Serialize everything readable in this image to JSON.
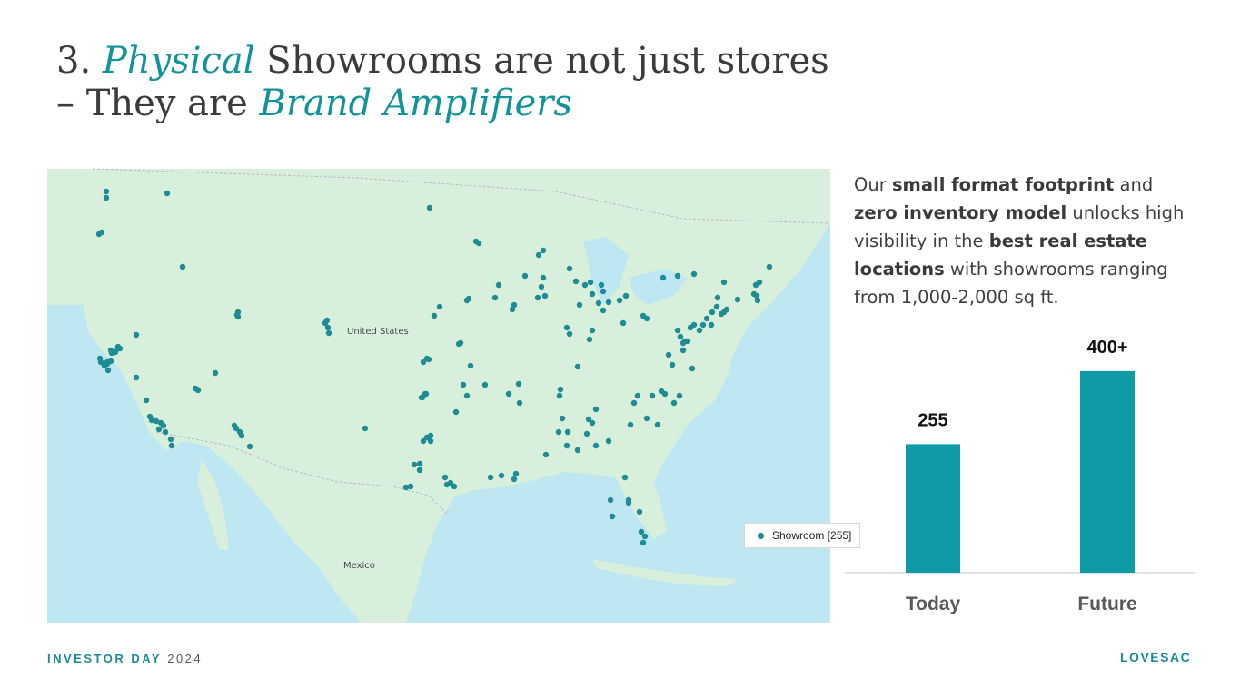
{
  "title": {
    "number": "3.",
    "word1": "Physical",
    "mid": " Showrooms are not just stores",
    "line2_pre": "– They are ",
    "word2": "Brand Amplifiers"
  },
  "map": {
    "country_label": "United States",
    "mexico_label": "Mexico",
    "legend_label": "Showroom [255]",
    "marker_color": "#1e8c95"
  },
  "description": {
    "p1": "Our ",
    "b1": "small format footprint",
    "p2": " and ",
    "b2": "zero inventory model",
    "p3": " unlocks high visibility in the  ",
    "b3": "best real estate locations",
    "p4": " with showrooms ranging from 1,000-2,000 sq ft."
  },
  "chart_data": {
    "type": "bar",
    "categories": [
      "Today",
      "Future"
    ],
    "values": [
      255,
      400
    ],
    "data_labels": [
      "255",
      "400+"
    ],
    "ylim": [
      0,
      470
    ],
    "color": "#0f9aa5",
    "grid": false,
    "legend": "none"
  },
  "footer": {
    "brand_event": "INVESTOR DAY",
    "year": "2024",
    "logo": "LOVESAC"
  }
}
